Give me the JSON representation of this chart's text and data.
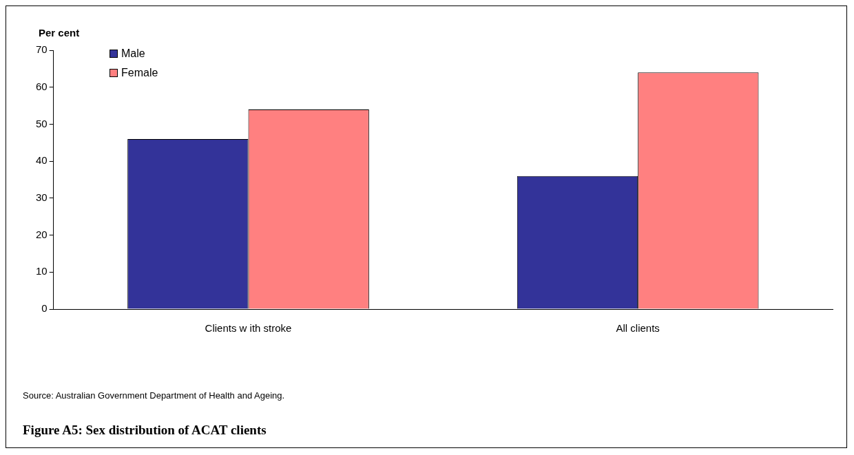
{
  "chart_data": {
    "type": "bar",
    "title": "Figure A5: Sex distribution of ACAT clients",
    "ylabel": "Per cent",
    "annotations": [
      "Source: Australian Government Department of Health and Ageing."
    ],
    "categories": [
      "Clients w ith stroke",
      "All clients"
    ],
    "series": [
      {
        "name": "Male",
        "color": "#333399",
        "values": [
          46,
          36
        ]
      },
      {
        "name": "Female",
        "color": "#ff8080",
        "values": [
          54,
          64
        ]
      }
    ],
    "ylim": [
      0,
      70
    ],
    "yticks": [
      0,
      10,
      20,
      30,
      40,
      50,
      60,
      70
    ],
    "grid": false,
    "legend": "top left"
  }
}
